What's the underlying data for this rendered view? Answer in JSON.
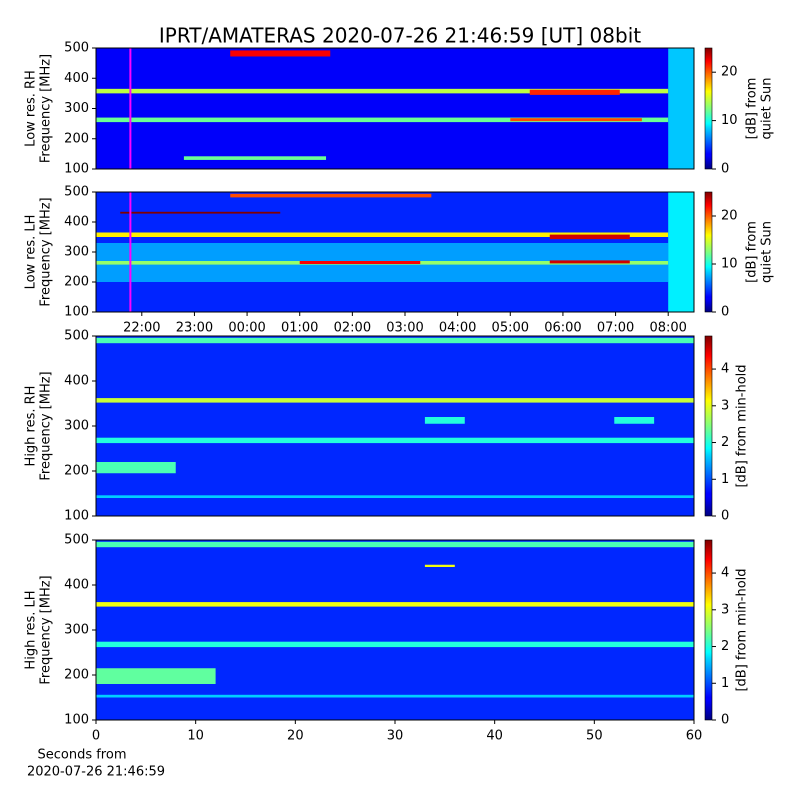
{
  "title": "IPRT/AMATERAS 2020-07-26 21:46:59 [UT]   08bit",
  "chart_data": [
    {
      "type": "heatmap",
      "colormap": "jet",
      "ylabel": [
        "Low res. RH",
        "Frequency [MHz]"
      ],
      "xlim": [
        21.13,
        32.49
      ],
      "ylim": [
        100,
        500
      ],
      "yticks": [
        100,
        200,
        300,
        400,
        500
      ],
      "clim": [
        0,
        25
      ],
      "cticks": [
        0,
        10,
        20
      ],
      "clabel": [
        "[dB] from",
        "quiet Sun"
      ],
      "marker_x": 21.783,
      "marker_color": "#ff00ff",
      "background": 3,
      "patches": [
        {
          "x": [
            21.13,
            32.0
          ],
          "y": [
            350,
            365
          ],
          "value": 14
        },
        {
          "x": [
            29.37,
            31.08
          ],
          "y": [
            345,
            362
          ],
          "value": 21
        },
        {
          "x": [
            21.13,
            32.0
          ],
          "y": [
            255,
            270
          ],
          "value": 12
        },
        {
          "x": [
            29.0,
            31.5
          ],
          "y": [
            258,
            268
          ],
          "value": 20
        },
        {
          "x": [
            23.68,
            25.58
          ],
          "y": [
            472,
            492
          ],
          "value": 22
        },
        {
          "x": [
            22.8,
            25.5
          ],
          "y": [
            130,
            142
          ],
          "value": 12
        },
        {
          "x": [
            32.0,
            32.49
          ],
          "y": [
            100,
            500
          ],
          "value": 8
        }
      ]
    },
    {
      "type": "heatmap",
      "colormap": "jet",
      "ylabel": [
        "Low res. LH",
        "Frequency [MHz]"
      ],
      "xlim": [
        21.13,
        32.49
      ],
      "ylim": [
        100,
        500
      ],
      "yticks": [
        100,
        200,
        300,
        400,
        500
      ],
      "xticks": [
        {
          "value": 22,
          "label": "22:00"
        },
        {
          "value": 23,
          "label": "23:00"
        },
        {
          "value": 24,
          "label": "00:00"
        },
        {
          "value": 25,
          "label": "01:00"
        },
        {
          "value": 26,
          "label": "02:00"
        },
        {
          "value": 27,
          "label": "03:00"
        },
        {
          "value": 28,
          "label": "04:00"
        },
        {
          "value": 29,
          "label": "05:00"
        },
        {
          "value": 30,
          "label": "06:00"
        },
        {
          "value": 31,
          "label": "07:00"
        },
        {
          "value": 32,
          "label": "08:00"
        }
      ],
      "clim": [
        0,
        25
      ],
      "cticks": [
        0,
        10,
        20
      ],
      "clabel": [
        "[dB] from",
        "quiet Sun"
      ],
      "marker_x": 21.783,
      "marker_color": "#ff00ff",
      "background": 4,
      "patches": [
        {
          "x": [
            21.13,
            32.0
          ],
          "y": [
            200,
            330
          ],
          "value": 7
        },
        {
          "x": [
            21.13,
            32.0
          ],
          "y": [
            350,
            365
          ],
          "value": 16
        },
        {
          "x": [
            29.75,
            31.27
          ],
          "y": [
            343,
            358
          ],
          "value": 23
        },
        {
          "x": [
            21.13,
            32.0
          ],
          "y": [
            258,
            270
          ],
          "value": 13
        },
        {
          "x": [
            25.0,
            27.29
          ],
          "y": [
            260,
            270
          ],
          "value": 22
        },
        {
          "x": [
            29.75,
            31.27
          ],
          "y": [
            262,
            272
          ],
          "value": 23
        },
        {
          "x": [
            21.59,
            24.63
          ],
          "y": [
            428,
            434
          ],
          "value": 25
        },
        {
          "x": [
            23.68,
            27.5
          ],
          "y": [
            482,
            494
          ],
          "value": 20
        },
        {
          "x": [
            32.0,
            32.49
          ],
          "y": [
            100,
            500
          ],
          "value": 9
        }
      ]
    },
    {
      "type": "heatmap",
      "colormap": "jet",
      "ylabel": [
        "High res. RH",
        "Frequency [MHz]"
      ],
      "xlim": [
        0,
        60
      ],
      "ylim": [
        100,
        500
      ],
      "yticks": [
        100,
        200,
        300,
        400,
        500
      ],
      "clim": [
        0,
        4.9
      ],
      "cticks": [
        0,
        1,
        2,
        3,
        4
      ],
      "clabel": [
        "[dB] from min-hold"
      ],
      "background": 0.8,
      "patches": [
        {
          "x": [
            0,
            60
          ],
          "y": [
            352,
            362
          ],
          "value": 2.8
        },
        {
          "x": [
            0,
            60
          ],
          "y": [
            262,
            274
          ],
          "value": 2.0
        },
        {
          "x": [
            0,
            60
          ],
          "y": [
            484,
            496
          ],
          "value": 2.2
        },
        {
          "x": [
            0,
            60
          ],
          "y": [
            140,
            146
          ],
          "value": 1.6
        },
        {
          "x": [
            0,
            8
          ],
          "y": [
            195,
            220
          ],
          "value": 2.2
        },
        {
          "x": [
            33,
            37
          ],
          "y": [
            305,
            320
          ],
          "value": 2.0
        },
        {
          "x": [
            52,
            56
          ],
          "y": [
            305,
            320
          ],
          "value": 2.0
        }
      ]
    },
    {
      "type": "heatmap",
      "colormap": "jet",
      "ylabel": [
        "High res. LH",
        "Frequency [MHz]"
      ],
      "xlim": [
        0,
        60
      ],
      "ylim": [
        100,
        500
      ],
      "yticks": [
        100,
        200,
        300,
        400,
        500
      ],
      "xticks": [
        0,
        10,
        20,
        30,
        40,
        50,
        60
      ],
      "xlabel": [
        "Seconds from",
        "2020-07-26 21:46:59"
      ],
      "clim": [
        0,
        4.9
      ],
      "cticks": [
        0,
        1,
        2,
        3,
        4
      ],
      "clabel": [
        "[dB] from min-hold"
      ],
      "background": 0.8,
      "patches": [
        {
          "x": [
            0,
            60
          ],
          "y": [
            352,
            362
          ],
          "value": 3.0
        },
        {
          "x": [
            0,
            60
          ],
          "y": [
            262,
            274
          ],
          "value": 2.0
        },
        {
          "x": [
            0,
            60
          ],
          "y": [
            484,
            496
          ],
          "value": 2.2
        },
        {
          "x": [
            0,
            60
          ],
          "y": [
            150,
            156
          ],
          "value": 1.6
        },
        {
          "x": [
            0,
            12
          ],
          "y": [
            180,
            215
          ],
          "value": 2.3
        },
        {
          "x": [
            33,
            36
          ],
          "y": [
            440,
            445
          ],
          "value": 3.0
        }
      ]
    }
  ]
}
